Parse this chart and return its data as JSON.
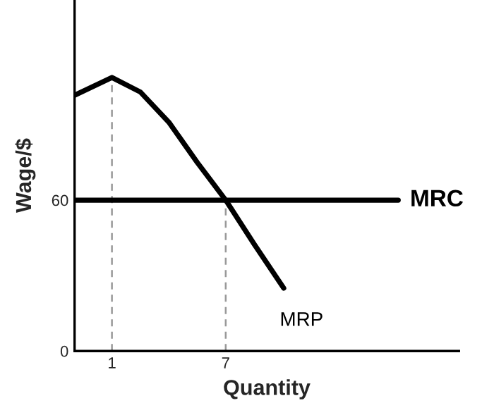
{
  "chart_data": {
    "type": "line",
    "xlabel": "Quantity",
    "ylabel": "Wage/$",
    "xlim": [
      -0.97,
      19.3
    ],
    "ylim": [
      0,
      139.6
    ],
    "xticks": [
      1,
      7
    ],
    "yticks": [
      0,
      60
    ],
    "grid": false,
    "legend": false,
    "marker": "none",
    "series": [
      {
        "name": "MRP",
        "color": "#000000",
        "x": [
          -0.97,
          1,
          2.5,
          4.0,
          5.5,
          7,
          8.5,
          10.06
        ],
        "values": [
          101.7,
          108.8,
          103,
          91,
          75,
          60,
          42.5,
          25
        ]
      },
      {
        "name": "MRC",
        "color": "#000000",
        "x": [
          -0.97,
          16.1
        ],
        "values": [
          60,
          60
        ]
      },
      {
        "color": "#999999",
        "line_style": "dashed",
        "x": [
          1,
          1
        ],
        "values": [
          0,
          108.8
        ]
      },
      {
        "color": "#999999",
        "line_style": "dashed",
        "x": [
          7,
          7
        ],
        "values": [
          0,
          60
        ]
      }
    ]
  }
}
